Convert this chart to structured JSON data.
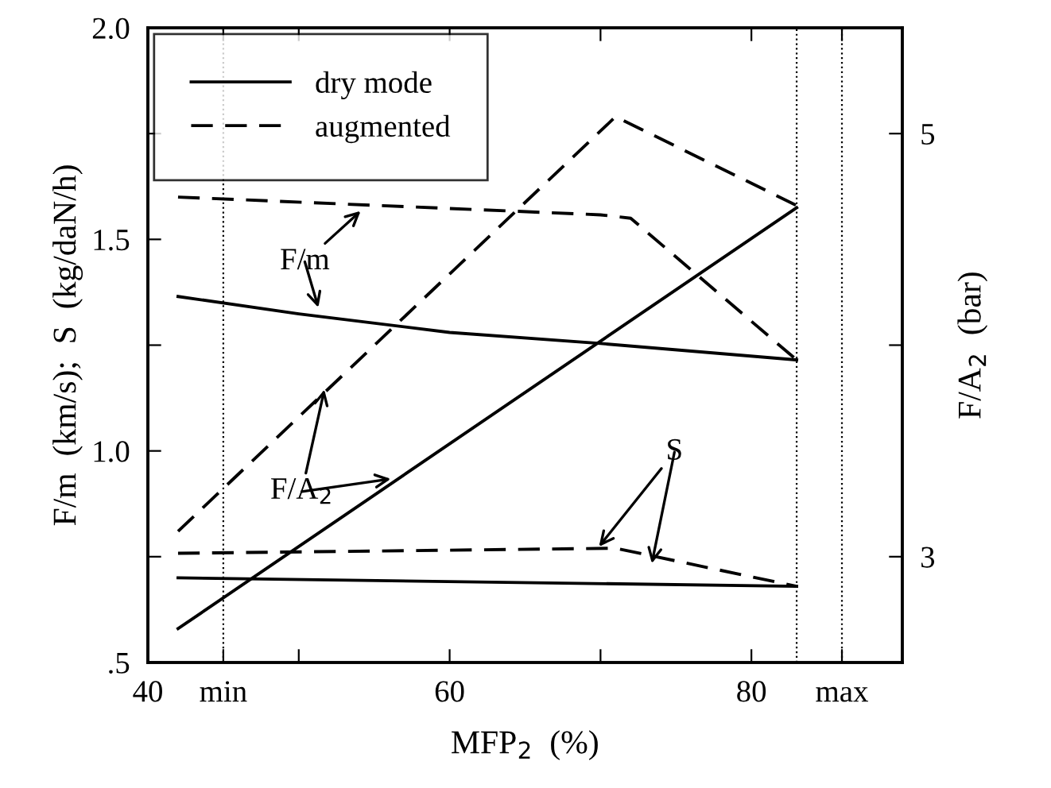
{
  "chart_data": {
    "type": "line",
    "xlabel": "MFP$_{2}$  (%)",
    "ylabel": "F/m  (km/s);  S  (kg/daN/h)",
    "y2label": "F/A$_{2}$  (bar)",
    "xlim": [
      40,
      90
    ],
    "ylim": [
      0.5,
      2.0
    ],
    "y2lim": [
      2.5,
      5.5
    ],
    "xticks": [
      40,
      {
        "value": 45,
        "label": "min"
      },
      {
        "value": 50,
        "label": null
      },
      60,
      {
        "value": 70,
        "label": null
      },
      80,
      {
        "value": 86,
        "label": "max"
      }
    ],
    "yticks": [
      {
        "value": 0.5,
        "label": ".5"
      },
      {
        "value": 0.75,
        "label": null
      },
      {
        "value": 1.0,
        "label": "1.0"
      },
      {
        "value": 1.25,
        "label": null
      },
      {
        "value": 1.5,
        "label": "1.5"
      },
      {
        "value": 1.75,
        "label": null
      },
      {
        "value": 2.0,
        "label": "2.0"
      }
    ],
    "y2ticks": [
      3,
      {
        "value": 4,
        "label": null
      },
      5
    ],
    "series": [
      {
        "name": "dry mode",
        "color": "#000000",
        "line_style": "solid",
        "x": [
          42,
          50,
          60,
          70,
          83
        ],
        "values": [
          1.365,
          1.324,
          1.28,
          1.254,
          1.215
        ]
      },
      {
        "name": "augmented",
        "color": "#000000",
        "line_style": "dashed",
        "x": [
          42,
          70,
          72,
          83
        ],
        "values": [
          1.6,
          1.558,
          1.55,
          1.215
        ]
      },
      {
        "color": "#000000",
        "line_style": "solid",
        "axis": "y2",
        "x": [
          42,
          83
        ],
        "values": [
          2.66,
          4.65
        ]
      },
      {
        "color": "#000000",
        "line_style": "dashed",
        "axis": "y2",
        "x": [
          42,
          71,
          83
        ],
        "values": [
          3.12,
          5.08,
          4.66
        ]
      },
      {
        "color": "#000000",
        "line_style": "solid",
        "x": [
          42,
          83
        ],
        "values": [
          0.7,
          0.68
        ]
      },
      {
        "color": "#000000",
        "line_style": "dashed",
        "x": [
          42,
          71,
          83
        ],
        "values": [
          0.758,
          0.77,
          0.68
        ]
      }
    ],
    "ref_lines": [
      {
        "axis": "x",
        "value": 45,
        "line_style": "dotted",
        "color": "#000000"
      },
      {
        "axis": "x",
        "value": 83,
        "line_style": "dotted",
        "color": "#000000"
      },
      {
        "axis": "x",
        "value": 86,
        "line_style": "dotted",
        "color": "#000000"
      }
    ],
    "annotations": [
      {
        "text": "F/m",
        "x": 54.1,
        "y": 1.567
      },
      {
        "text": "F/A$_{2}$",
        "x": 51.7,
        "y": 1.145
      },
      {
        "text": "S",
        "x": 69.9,
        "y": 0.774
      }
    ],
    "legend": "top left",
    "grid": false,
    "marker": "none"
  }
}
